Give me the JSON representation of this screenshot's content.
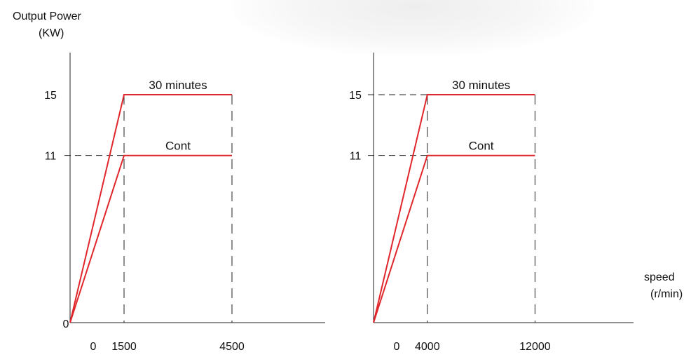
{
  "colors": {
    "curve": "#e0262b",
    "axis": "#222222",
    "text": "#111111"
  },
  "labels": {
    "ylabel_line1": "Output Power",
    "ylabel_line2": "(KW)",
    "xlabel_line1": "speed",
    "xlabel_line2": "(r/min)"
  },
  "chart_data": [
    {
      "type": "line",
      "ylabel": "Output Power (KW)",
      "ylim": [
        0,
        16.9
      ],
      "xlim": [
        0,
        5020
      ],
      "y_ticks": [
        "15",
        "11",
        "0"
      ],
      "x_ticks": [
        "0",
        "1500",
        "4500"
      ],
      "grid": false,
      "series": [
        {
          "name": "30 minutes",
          "points": [
            [
              0,
              0
            ],
            [
              1500,
              15
            ],
            [
              4500,
              15
            ]
          ]
        },
        {
          "name": "Cont",
          "points": [
            [
              0,
              0
            ],
            [
              1500,
              11
            ],
            [
              4500,
              11
            ]
          ]
        }
      ]
    },
    {
      "type": "line",
      "xlabel": "speed (r/min)",
      "ylim": [
        0,
        16.9
      ],
      "xlim": [
        0,
        14800
      ],
      "y_ticks": [
        "15",
        "11"
      ],
      "x_ticks": [
        "0",
        "4000",
        "12000"
      ],
      "grid": false,
      "series": [
        {
          "name": "30 minutes",
          "points": [
            [
              0,
              0
            ],
            [
              4000,
              15
            ],
            [
              12000,
              15
            ]
          ]
        },
        {
          "name": "Cont",
          "points": [
            [
              0,
              0
            ],
            [
              4000,
              11
            ],
            [
              12000,
              11
            ]
          ]
        }
      ]
    }
  ]
}
